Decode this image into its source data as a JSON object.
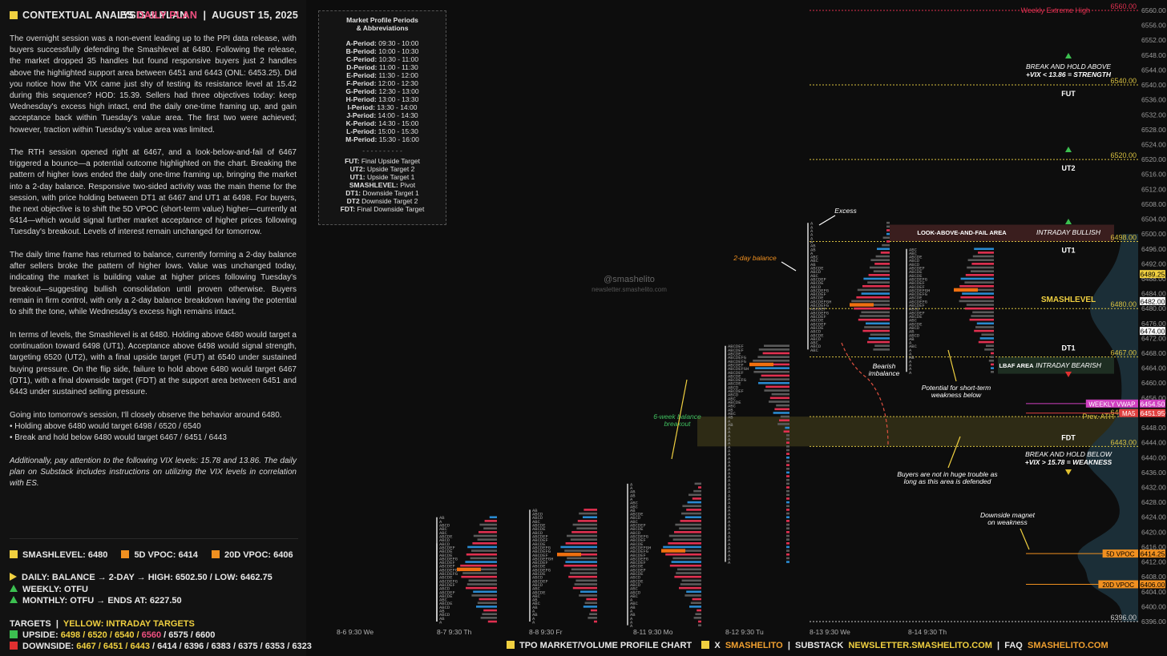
{
  "header": {
    "title": "CONTEXTUAL ANALYSIS & PLAN",
    "symbol": "ES",
    "plan_label": "DAILY PLAN",
    "date": "AUGUST 15, 2025"
  },
  "paragraphs": [
    "The overnight session was a non-event leading up to the PPI data release, with buyers successfully defending the Smashlevel at 6480. Following the release, the market dropped 35 handles but found responsive buyers just 2 handles above the highlighted support area between 6451 and 6443 (ONL: 6453.25). Did you notice how the VIX came just shy of testing its resistance level at 15.42 during this sequence? HOD: 15.39. Sellers had three objectives today: keep Wednesday's excess high intact, end the daily one-time framing up, and gain acceptance back within Tuesday's value area. The first two were achieved; however, traction within Tuesday's value area was limited.",
    "The RTH session opened right at 6467, and a look-below-and-fail of 6467 triggered a bounce—a potential outcome highlighted on the chart. Breaking the pattern of higher lows ended the daily one-time framing up, bringing the market into a 2-day balance. Responsive two-sided activity was the main theme for the session, with price holding between DT1 at 6467 and UT1 at 6498. For buyers, the next objective is to shift the 5D VPOC (short-term value) higher—currently at 6414—which would signal further market acceptance of higher prices following Tuesday's breakout. Levels of interest remain unchanged for tomorrow.",
    "The daily time frame has returned to balance, currently forming a 2-day balance after sellers broke the pattern of higher lows. Value was unchanged today, indicating the market is building value at higher prices following Tuesday's breakout—suggesting bullish consolidation until proven otherwise. Buyers remain in firm control, with only a 2-day balance breakdown having the potential to shift the tone, while Wednesday's excess high remains intact.",
    "In terms of levels, the Smashlevel is at 6480. Holding above 6480 would target a continuation toward 6498 (UT1). Acceptance above 6498 would signal strength, targeting 6520 (UT2), with a final upside target (FUT) at 6540 under sustained buying pressure. On the flip side, failure to hold above 6480 would target 6467 (DT1), with a final downside target (FDT) at the support area between 6451 and 6443 under sustained selling pressure.",
    "Going into tomorrow's session, I'll closely observe the behavior around 6480.",
    "• Holding above 6480 would target 6498 / 6520 / 6540",
    "• Break and hold below 6480 would target 6467 / 6451 / 6443"
  ],
  "note": "Additionally, pay attention to the following VIX levels: 15.78 and 13.86. The daily plan on Substack includes instructions on utilizing the VIX levels in correlation with ES.",
  "levels_row": {
    "smashlevel": "SMASHLEVEL: 6480",
    "vpoc5": "5D VPOC: 6414",
    "vpoc20": "20D VPOC: 6406"
  },
  "status": {
    "daily": "DAILY: BALANCE → 2-DAY → HIGH: 6502.50 / LOW: 6462.75",
    "weekly": "WEEKLY: OTFU",
    "monthly": "MONTHLY: OTFU → ENDS AT: 6227.50"
  },
  "targets": {
    "label": "TARGETS",
    "yellow_label": "YELLOW: INTRADAY TARGETS",
    "upside_label": "UPSIDE:",
    "upside_yellow": "6498 / 6520 / 6540 /",
    "upside_pink": "6560",
    "upside_rest": "/ 6575 / 6600",
    "downside_label": "DOWNSIDE:",
    "downside_yellow": "6467 / 6451 / 6443",
    "downside_rest": "/ 6414 / 6396 / 6383 / 6375 / 6353 / 6323"
  },
  "periods_box": {
    "title1": "Market Profile Periods",
    "title2": "& Abbreviations",
    "periods": [
      [
        "A-Period:",
        "09:30 - 10:00"
      ],
      [
        "B-Period:",
        "10:00 - 10:30"
      ],
      [
        "C-Period:",
        "10:30 - 11:00"
      ],
      [
        "D-Period:",
        "11:00 - 11:30"
      ],
      [
        "E-Period:",
        "11:30 - 12:00"
      ],
      [
        "F-Period:",
        "12:00 - 12:30"
      ],
      [
        "G-Period:",
        "12:30 - 13:00"
      ],
      [
        "H-Period:",
        "13:00 - 13:30"
      ],
      [
        "I-Period:",
        "13:30 - 14:00"
      ],
      [
        "J-Period:",
        "14:00 - 14:30"
      ],
      [
        "K-Period:",
        "14:30 - 15:00"
      ],
      [
        "L-Period:",
        "15:00 - 15:30"
      ],
      [
        "M-Period:",
        "15:30 - 16:00"
      ]
    ],
    "sep": "- - - - - - - - - -",
    "abbrevs": [
      [
        "FUT:",
        "Final Upside Target"
      ],
      [
        "UT2:",
        "Upside Target 2"
      ],
      [
        "UT1:",
        "Upside Target 1"
      ],
      [
        "SMASHLEVEL:",
        "Pivot"
      ],
      [
        "DT1:",
        "Downside Target 1"
      ],
      [
        "DT2",
        "Downside Target 2"
      ],
      [
        "FDT:",
        "Final Downside Target"
      ]
    ]
  },
  "watermark": {
    "handle": "@smashelito",
    "site": "newsletter.smashelito.com"
  },
  "footer": {
    "chart_label": "TPO MARKET/VOLUME PROFILE CHART",
    "x_label": "X",
    "x_handle": "SMASHELITO",
    "substack_label": "SUBSTACK",
    "substack_url": "NEWSLETTER.SMASHELITO.COM",
    "faq_label": "FAQ",
    "faq_url": "SMASHELITO.COM"
  },
  "chart_data": {
    "type": "tpo_profile",
    "y_axis": {
      "min": 6394,
      "max": 6562,
      "ticks": [
        6396,
        6400,
        6404,
        6408,
        6412,
        6416,
        6420,
        6424,
        6428,
        6432,
        6436,
        6440,
        6444,
        6448,
        6452,
        6456,
        6460,
        6464,
        6468,
        6472,
        6476,
        6480,
        6484,
        6488,
        6492,
        6496,
        6500,
        6504,
        6508,
        6512,
        6516,
        6520,
        6524,
        6528,
        6532,
        6536,
        6540,
        6544,
        6548,
        6552,
        6556,
        6560
      ]
    },
    "x_axis_labels": [
      "8-6  9:30 We",
      "8-7  9:30 Th",
      "8-8  9:30 Fr",
      "8-11  9:30 Mo",
      "8-12  9:30 Tu",
      "8-13  9:30 We",
      "8-14  9:30 Th"
    ],
    "sessions": [
      {
        "label": "8-6",
        "low": 6396,
        "high": 6417,
        "poc": 6406
      },
      {
        "label": "8-7",
        "low": 6396,
        "high": 6424,
        "poc": 6410
      },
      {
        "label": "8-8",
        "low": 6396,
        "high": 6426,
        "poc": 6414
      },
      {
        "label": "8-11",
        "low": 6395,
        "high": 6433,
        "poc": 6415
      },
      {
        "label": "8-12",
        "low": 6412,
        "high": 6470,
        "poc": 6465
      },
      {
        "label": "8-13",
        "low": 6469,
        "high": 6503,
        "poc": 6481
      },
      {
        "label": "8-14",
        "low": 6463,
        "high": 6496,
        "poc": 6485
      }
    ],
    "levels": [
      {
        "price": 6560,
        "label": "Weekly Extreme High",
        "value_label": "6560.00",
        "color": "#e03050"
      },
      {
        "price": 6540,
        "label": "FUT",
        "value_label": "6540.00",
        "color": "#d8c040"
      },
      {
        "price": 6520,
        "label": "UT2",
        "value_label": "6520.00",
        "color": "#d8c040"
      },
      {
        "price": 6498,
        "label": "UT1",
        "value_label": "6498.00",
        "color": "#d8c040"
      },
      {
        "price": 6480,
        "label": "SMASHLEVEL",
        "value_label": "6480.00",
        "color": "#d8c040"
      },
      {
        "price": 6467,
        "label": "DT1",
        "value_label": "6467.00",
        "color": "#d8c040"
      },
      {
        "price": 6451,
        "label": "Prev. ATH",
        "value_label": "6451.00",
        "color": "#d8c040"
      },
      {
        "price": 6443,
        "label": "FDT",
        "value_label": "6443.00",
        "color": "#d8c040"
      },
      {
        "price": 6396,
        "label": "",
        "value_label": "6396.00",
        "color": "#cccccc"
      }
    ],
    "price_tags": [
      {
        "price": 6489.25,
        "text": "6489.25",
        "bg": "#f0d040",
        "fg": "#000000"
      },
      {
        "price": 6482,
        "text": "6482.00",
        "bg": "#ffffff",
        "fg": "#000000"
      },
      {
        "price": 6474,
        "text": "6474.00",
        "bg": "#ffffff",
        "fg": "#000000"
      },
      {
        "price": 6454.5,
        "text": "6454.50",
        "bg": "#d040c0",
        "fg": "#ffffff",
        "label": "WEEKLY VWAP"
      },
      {
        "price": 6451.95,
        "text": "6451.95",
        "bg": "#e04040",
        "fg": "#ffffff",
        "label": "MA5"
      },
      {
        "price": 6414.25,
        "text": "6414.25",
        "bg": "#f09020",
        "fg": "#000000",
        "label": "5D VPOC"
      },
      {
        "price": 6406,
        "text": "6406.00",
        "bg": "#f09020",
        "fg": "#000000",
        "label": "20D VPOC"
      }
    ],
    "annotations": {
      "break_hold_above_1": "BREAK AND HOLD ABOVE",
      "break_hold_above_2": "+VIX < 13.86 = STRENGTH",
      "intraday_bullish": "INTRADAY BULLISH",
      "look_above": "LOOK-ABOVE-AND-FAIL AREA",
      "excess": "Excess",
      "two_day": "2-day balance",
      "bearish_1": "Bearish",
      "bearish_2": "imbalance",
      "lbaf": "LBAF AREA",
      "intraday_bearish": "INTRADAY BEARISH",
      "potential_1": "Potential for short-term",
      "potential_2": "weakness below",
      "six_week_1": "6-week balance",
      "six_week_2": "breakout",
      "break_hold_below_1": "BREAK AND HOLD BELOW",
      "break_hold_below_2": "+VIX > 15.78 = WEAKNESS",
      "buyers_1": "Buyers are not in huge trouble as",
      "buyers_2": "long as this area is defended",
      "magnet_1": "Downside magnet",
      "magnet_2": "on weakness"
    }
  }
}
